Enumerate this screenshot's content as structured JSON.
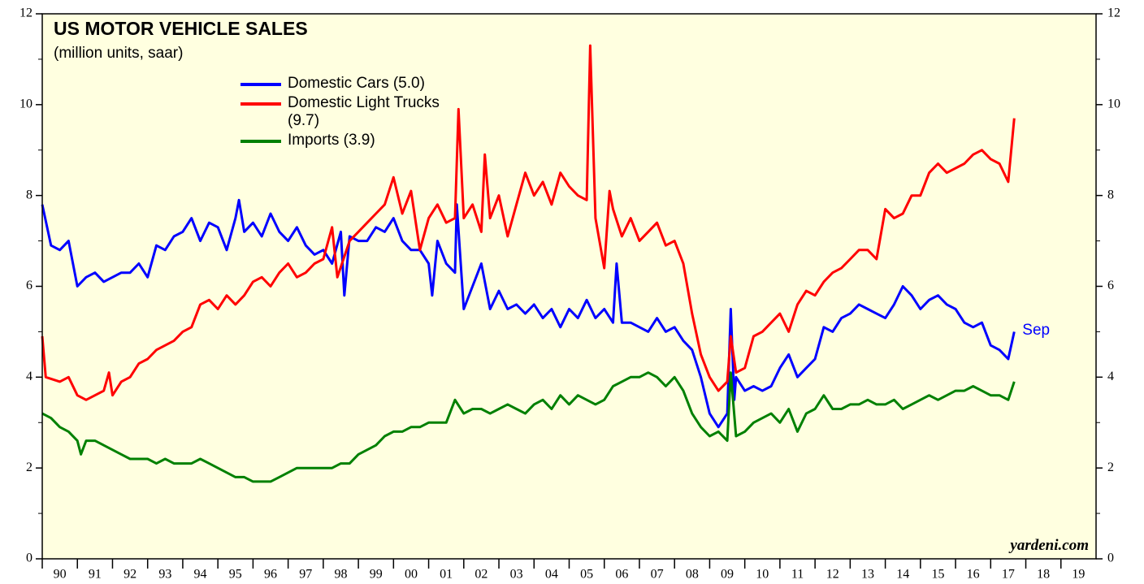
{
  "chart_data": {
    "type": "line",
    "title": "US MOTOR VEHICLE SALES",
    "subtitle": "(million units, saar)",
    "source": "yardeni.com",
    "annotation": {
      "text": "Sep",
      "color": "#0000ff"
    },
    "background": "#ffffe0",
    "xlim": [
      1990,
      2020
    ],
    "xticks": [
      {
        "value": 1990.5,
        "label": "90"
      },
      {
        "value": 1991.5,
        "label": "91"
      },
      {
        "value": 1992.5,
        "label": "92"
      },
      {
        "value": 1993.5,
        "label": "93"
      },
      {
        "value": 1994.5,
        "label": "94"
      },
      {
        "value": 1995.5,
        "label": "95"
      },
      {
        "value": 1996.5,
        "label": "96"
      },
      {
        "value": 1997.5,
        "label": "97"
      },
      {
        "value": 1998.5,
        "label": "98"
      },
      {
        "value": 1999.5,
        "label": "99"
      },
      {
        "value": 2000.5,
        "label": "00"
      },
      {
        "value": 2001.5,
        "label": "01"
      },
      {
        "value": 2002.5,
        "label": "02"
      },
      {
        "value": 2003.5,
        "label": "03"
      },
      {
        "value": 2004.5,
        "label": "04"
      },
      {
        "value": 2005.5,
        "label": "05"
      },
      {
        "value": 2006.5,
        "label": "06"
      },
      {
        "value": 2007.5,
        "label": "07"
      },
      {
        "value": 2008.5,
        "label": "08"
      },
      {
        "value": 2009.5,
        "label": "09"
      },
      {
        "value": 2010.5,
        "label": "10"
      },
      {
        "value": 2011.5,
        "label": "11"
      },
      {
        "value": 2012.5,
        "label": "12"
      },
      {
        "value": 2013.5,
        "label": "13"
      },
      {
        "value": 2014.5,
        "label": "14"
      },
      {
        "value": 2015.5,
        "label": "15"
      },
      {
        "value": 2016.5,
        "label": "16"
      },
      {
        "value": 2017.5,
        "label": "17"
      },
      {
        "value": 2018.5,
        "label": "18"
      },
      {
        "value": 2019.5,
        "label": "19"
      }
    ],
    "ylim": [
      0,
      12
    ],
    "yticks": [
      0,
      2,
      4,
      6,
      8,
      10,
      12
    ],
    "y2lim": [
      0,
      12
    ],
    "y2ticks": [
      0,
      2,
      4,
      6,
      8,
      10,
      12
    ],
    "series": [
      {
        "name": "Domestic Cars (5.0)",
        "color": "#0000ff",
        "x": [
          1990,
          1990.25,
          1990.5,
          1990.75,
          1991,
          1991.25,
          1991.5,
          1991.75,
          1992,
          1992.25,
          1992.5,
          1992.75,
          1993,
          1993.25,
          1993.5,
          1993.75,
          1994,
          1994.25,
          1994.5,
          1994.75,
          1995,
          1995.25,
          1995.5,
          1995.6,
          1995.75,
          1996,
          1996.25,
          1996.5,
          1996.75,
          1997,
          1997.25,
          1997.5,
          1997.75,
          1998,
          1998.25,
          1998.5,
          1998.6,
          1998.75,
          1999,
          1999.25,
          1999.5,
          1999.75,
          2000,
          2000.25,
          2000.5,
          2000.75,
          2001,
          2001.1,
          2001.25,
          2001.5,
          2001.75,
          2001.8,
          2002,
          2002.25,
          2002.5,
          2002.75,
          2003,
          2003.25,
          2003.5,
          2003.75,
          2004,
          2004.25,
          2004.5,
          2004.75,
          2005,
          2005.25,
          2005.5,
          2005.75,
          2006,
          2006.25,
          2006.35,
          2006.5,
          2006.75,
          2007,
          2007.25,
          2007.5,
          2007.75,
          2008,
          2008.25,
          2008.5,
          2008.75,
          2009,
          2009.25,
          2009.5,
          2009.6,
          2009.7,
          2009.75,
          2010,
          2010.25,
          2010.5,
          2010.75,
          2011,
          2011.25,
          2011.5,
          2011.75,
          2012,
          2012.25,
          2012.5,
          2012.75,
          2013,
          2013.25,
          2013.5,
          2013.75,
          2014,
          2014.25,
          2014.5,
          2014.75,
          2015,
          2015.25,
          2015.5,
          2015.75,
          2016,
          2016.25,
          2016.5,
          2016.75,
          2017,
          2017.25,
          2017.5,
          2017.67
        ],
        "values": [
          7.8,
          6.9,
          6.8,
          7.0,
          6.0,
          6.2,
          6.3,
          6.1,
          6.2,
          6.3,
          6.3,
          6.5,
          6.2,
          6.9,
          6.8,
          7.1,
          7.2,
          7.5,
          7.0,
          7.4,
          7.3,
          6.8,
          7.5,
          7.9,
          7.2,
          7.4,
          7.1,
          7.6,
          7.2,
          7.0,
          7.3,
          6.9,
          6.7,
          6.8,
          6.5,
          7.2,
          5.8,
          7.1,
          7.0,
          7.0,
          7.3,
          7.2,
          7.5,
          7.0,
          6.8,
          6.8,
          6.5,
          5.8,
          7.0,
          6.5,
          6.3,
          7.8,
          5.5,
          6.0,
          6.5,
          5.5,
          5.9,
          5.5,
          5.6,
          5.4,
          5.6,
          5.3,
          5.5,
          5.1,
          5.5,
          5.3,
          5.7,
          5.3,
          5.5,
          5.2,
          6.5,
          5.2,
          5.2,
          5.1,
          5.0,
          5.3,
          5.0,
          5.1,
          4.8,
          4.6,
          4.0,
          3.2,
          2.9,
          3.2,
          5.5,
          3.5,
          4.0,
          3.7,
          3.8,
          3.7,
          3.8,
          4.2,
          4.5,
          4.0,
          4.2,
          4.4,
          5.1,
          5.0,
          5.3,
          5.4,
          5.6,
          5.5,
          5.4,
          5.3,
          5.6,
          6.0,
          5.8,
          5.5,
          5.7,
          5.8,
          5.6,
          5.5,
          5.2,
          5.1,
          5.2,
          4.7,
          4.6,
          4.4,
          5.0
        ]
      },
      {
        "name": "Domestic Light Trucks (9.7)",
        "color": "#ff0000",
        "x": [
          1990,
          1990.1,
          1990.5,
          1990.75,
          1991,
          1991.25,
          1991.5,
          1991.75,
          1991.9,
          1992,
          1992.25,
          1992.5,
          1992.75,
          1993,
          1993.25,
          1993.5,
          1993.75,
          1994,
          1994.25,
          1994.5,
          1994.75,
          1995,
          1995.25,
          1995.5,
          1995.75,
          1996,
          1996.25,
          1996.5,
          1996.75,
          1997,
          1997.25,
          1997.5,
          1997.75,
          1998,
          1998.25,
          1998.4,
          1998.75,
          1999,
          1999.25,
          1999.5,
          1999.75,
          2000,
          2000.25,
          2000.5,
          2000.75,
          2001,
          2001.25,
          2001.5,
          2001.75,
          2001.85,
          2002,
          2002.25,
          2002.5,
          2002.6,
          2002.75,
          2003,
          2003.25,
          2003.5,
          2003.75,
          2004,
          2004.25,
          2004.5,
          2004.75,
          2005,
          2005.25,
          2005.5,
          2005.6,
          2005.75,
          2006,
          2006.15,
          2006.25,
          2006.5,
          2006.75,
          2007,
          2007.25,
          2007.5,
          2007.75,
          2008,
          2008.25,
          2008.5,
          2008.75,
          2009,
          2009.25,
          2009.5,
          2009.6,
          2009.75,
          2010,
          2010.25,
          2010.5,
          2010.75,
          2011,
          2011.25,
          2011.5,
          2011.75,
          2012,
          2012.25,
          2012.5,
          2012.75,
          2013,
          2013.25,
          2013.5,
          2013.75,
          2014,
          2014.25,
          2014.5,
          2014.75,
          2015,
          2015.25,
          2015.5,
          2015.75,
          2016,
          2016.25,
          2016.5,
          2016.75,
          2017,
          2017.25,
          2017.5,
          2017.67
        ],
        "values": [
          4.9,
          4.0,
          3.9,
          4.0,
          3.6,
          3.5,
          3.6,
          3.7,
          4.1,
          3.6,
          3.9,
          4.0,
          4.3,
          4.4,
          4.6,
          4.7,
          4.8,
          5.0,
          5.1,
          5.6,
          5.7,
          5.5,
          5.8,
          5.6,
          5.8,
          6.1,
          6.2,
          6.0,
          6.3,
          6.5,
          6.2,
          6.3,
          6.5,
          6.6,
          7.3,
          6.2,
          7.0,
          7.2,
          7.4,
          7.6,
          7.8,
          8.4,
          7.6,
          8.1,
          6.8,
          7.5,
          7.8,
          7.4,
          7.5,
          9.9,
          7.5,
          7.8,
          7.2,
          8.9,
          7.5,
          8.0,
          7.1,
          7.8,
          8.5,
          8.0,
          8.3,
          7.8,
          8.5,
          8.2,
          8.0,
          7.9,
          11.3,
          7.5,
          6.4,
          8.1,
          7.7,
          7.1,
          7.5,
          7.0,
          7.2,
          7.4,
          6.9,
          7.0,
          6.5,
          5.4,
          4.5,
          4.0,
          3.7,
          3.9,
          4.9,
          4.1,
          4.2,
          4.9,
          5.0,
          5.2,
          5.4,
          5.0,
          5.6,
          5.9,
          5.8,
          6.1,
          6.3,
          6.4,
          6.6,
          6.8,
          6.8,
          6.6,
          7.7,
          7.5,
          7.6,
          8.0,
          8.0,
          8.5,
          8.7,
          8.5,
          8.6,
          8.7,
          8.9,
          9.0,
          8.8,
          8.7,
          8.3,
          9.7
        ]
      },
      {
        "name": "Imports (3.9)",
        "color": "#008000",
        "x": [
          1990,
          1990.25,
          1990.5,
          1990.75,
          1991,
          1991.1,
          1991.25,
          1991.5,
          1991.75,
          1992,
          1992.25,
          1992.5,
          1992.75,
          1993,
          1993.25,
          1993.5,
          1993.75,
          1994,
          1994.25,
          1994.5,
          1994.75,
          1995,
          1995.25,
          1995.5,
          1995.75,
          1996,
          1996.25,
          1996.5,
          1996.75,
          1997,
          1997.25,
          1997.5,
          1997.75,
          1998,
          1998.25,
          1998.5,
          1998.75,
          1999,
          1999.25,
          1999.5,
          1999.75,
          2000,
          2000.25,
          2000.5,
          2000.75,
          2001,
          2001.25,
          2001.5,
          2001.75,
          2002,
          2002.25,
          2002.5,
          2002.75,
          2003,
          2003.25,
          2003.5,
          2003.75,
          2004,
          2004.25,
          2004.5,
          2004.75,
          2005,
          2005.25,
          2005.5,
          2005.75,
          2006,
          2006.25,
          2006.5,
          2006.75,
          2007,
          2007.25,
          2007.5,
          2007.75,
          2008,
          2008.25,
          2008.5,
          2008.75,
          2009,
          2009.25,
          2009.5,
          2009.6,
          2009.75,
          2010,
          2010.25,
          2010.5,
          2010.75,
          2011,
          2011.25,
          2011.5,
          2011.75,
          2012,
          2012.25,
          2012.5,
          2012.75,
          2013,
          2013.25,
          2013.5,
          2013.75,
          2014,
          2014.25,
          2014.5,
          2014.75,
          2015,
          2015.25,
          2015.5,
          2015.75,
          2016,
          2016.25,
          2016.5,
          2016.75,
          2017,
          2017.25,
          2017.5,
          2017.67
        ],
        "values": [
          3.2,
          3.1,
          2.9,
          2.8,
          2.6,
          2.3,
          2.6,
          2.6,
          2.5,
          2.4,
          2.3,
          2.2,
          2.2,
          2.2,
          2.1,
          2.2,
          2.1,
          2.1,
          2.1,
          2.2,
          2.1,
          2.0,
          1.9,
          1.8,
          1.8,
          1.7,
          1.7,
          1.7,
          1.8,
          1.9,
          2.0,
          2.0,
          2.0,
          2.0,
          2.0,
          2.1,
          2.1,
          2.3,
          2.4,
          2.5,
          2.7,
          2.8,
          2.8,
          2.9,
          2.9,
          3.0,
          3.0,
          3.0,
          3.5,
          3.2,
          3.3,
          3.3,
          3.2,
          3.3,
          3.4,
          3.3,
          3.2,
          3.4,
          3.5,
          3.3,
          3.6,
          3.4,
          3.6,
          3.5,
          3.4,
          3.5,
          3.8,
          3.9,
          4.0,
          4.0,
          4.1,
          4.0,
          3.8,
          4.0,
          3.7,
          3.2,
          2.9,
          2.7,
          2.8,
          2.6,
          4.1,
          2.7,
          2.8,
          3.0,
          3.1,
          3.2,
          3.0,
          3.3,
          2.8,
          3.2,
          3.3,
          3.6,
          3.3,
          3.3,
          3.4,
          3.4,
          3.5,
          3.4,
          3.4,
          3.5,
          3.3,
          3.4,
          3.5,
          3.6,
          3.5,
          3.6,
          3.7,
          3.7,
          3.8,
          3.7,
          3.6,
          3.6,
          3.5,
          3.9
        ]
      }
    ]
  }
}
